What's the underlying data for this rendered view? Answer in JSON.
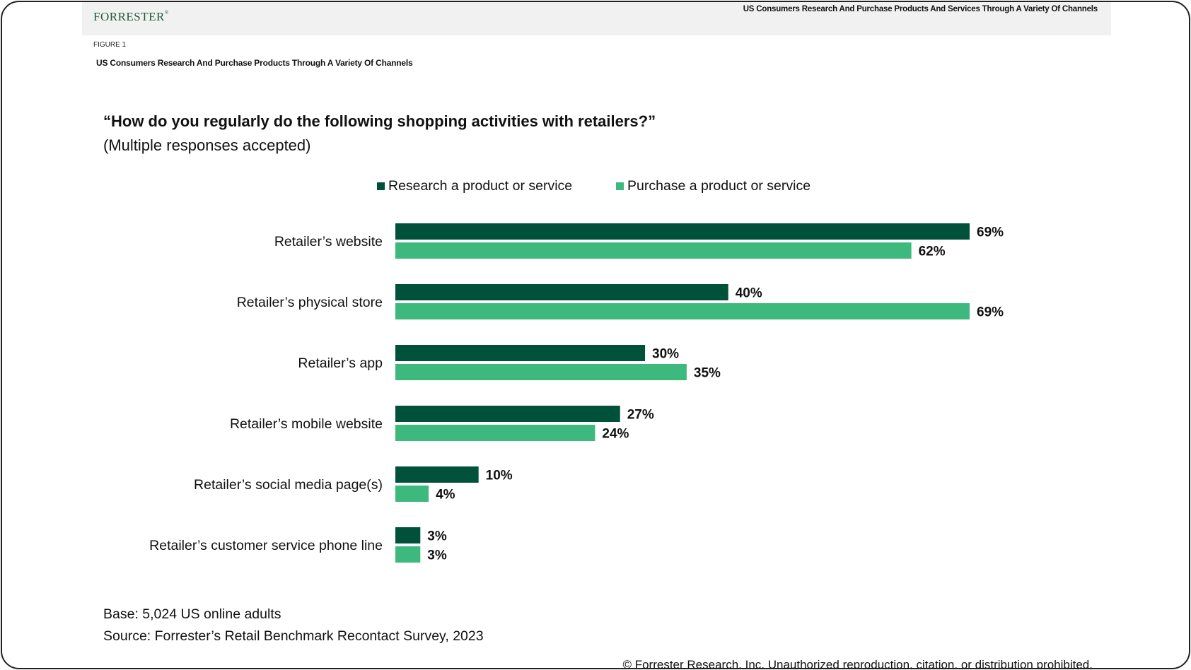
{
  "header": {
    "logo": "FORRESTER",
    "title": "US Consumers Research And Purchase Products And Services Through A Variety Of Channels"
  },
  "figure": {
    "number": "FIGURE 1",
    "title": "US Consumers Research And Purchase Products Through A Variety Of Channels"
  },
  "question": "“How do you regularly do the following shopping activities with retailers?”",
  "subquestion": "(Multiple responses accepted)",
  "colors": {
    "research": "#00513a",
    "purchase": "#3db97e"
  },
  "chart_data": {
    "type": "bar",
    "orientation": "horizontal",
    "title": "“How do you regularly do the following shopping activities with retailers?”",
    "subtitle": "(Multiple responses accepted)",
    "categories": [
      "Retailer’s website",
      "Retailer’s physical store",
      "Retailer’s app",
      "Retailer’s mobile website",
      "Retailer’s social media page(s)",
      "Retailer’s customer service phone line"
    ],
    "series": [
      {
        "name": "Research a product or service",
        "values": [
          69,
          40,
          30,
          27,
          10,
          3
        ],
        "labels": [
          "69%",
          "40%",
          "30%",
          "27%",
          "10%",
          "3%"
        ]
      },
      {
        "name": "Purchase a product or service",
        "values": [
          62,
          69,
          35,
          24,
          4,
          3
        ],
        "labels": [
          "62%",
          "69%",
          "35%",
          "24%",
          "4%",
          "3%"
        ]
      }
    ],
    "xlim": [
      0,
      69
    ],
    "grid": false,
    "legend": "top-center",
    "unit": "%"
  },
  "footer": {
    "base": "Base: 5,024 US online adults",
    "source": "Source: Forrester’s Retail Benchmark Recontact Survey, 2023",
    "copyright": "© Forrester Research, Inc. Unauthorized reproduction, citation, or distribution prohibited."
  }
}
